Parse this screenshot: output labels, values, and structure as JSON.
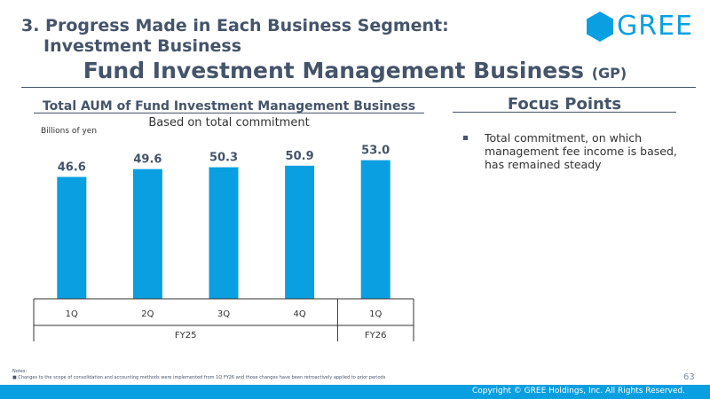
{
  "section": {
    "line1": "3. Progress Made in Each Business Segment:",
    "line2": "Investment Business"
  },
  "logo": {
    "text": "GREE",
    "icon": "hexagon-logo-icon",
    "color": "#0a9fe0"
  },
  "page_title": {
    "main": "Fund Investment Management Business",
    "suffix": "(GP)"
  },
  "focus": {
    "heading": "Focus Points",
    "items": [
      "Total commitment, on which management fee income is based, has remained steady"
    ]
  },
  "notes": {
    "label": "Notes:",
    "items": [
      "Changes to the scope of consolidation and accounting methods were implemented from 1Q FY26 and those changes have been retroactively applied to prior periods"
    ]
  },
  "page_number": "63",
  "footer": {
    "copyright": "Copyright © GREE Holdings, Inc. All Rights Reserved."
  },
  "colors": {
    "bar": "#0a9fe0",
    "text": "#44546a",
    "footer": "#0a9fe0"
  },
  "chart_data": {
    "type": "bar",
    "title": "Total AUM of Fund Investment Management Business",
    "subtitle": "Based on total commitment",
    "ylabel": "Billions of yen",
    "xlabel": "",
    "categories": [
      "1Q",
      "2Q",
      "3Q",
      "4Q",
      "1Q"
    ],
    "groups": [
      {
        "label": "FY25",
        "count": 4
      },
      {
        "label": "FY26",
        "count": 1
      }
    ],
    "series": [
      {
        "name": "Total AUM",
        "values": [
          46.6,
          49.6,
          50.3,
          50.9,
          53.0
        ]
      }
    ],
    "data_labels": [
      "46.6",
      "49.6",
      "50.3",
      "50.9",
      "53.0"
    ],
    "ylim": [
      0,
      60
    ],
    "grid": false
  }
}
